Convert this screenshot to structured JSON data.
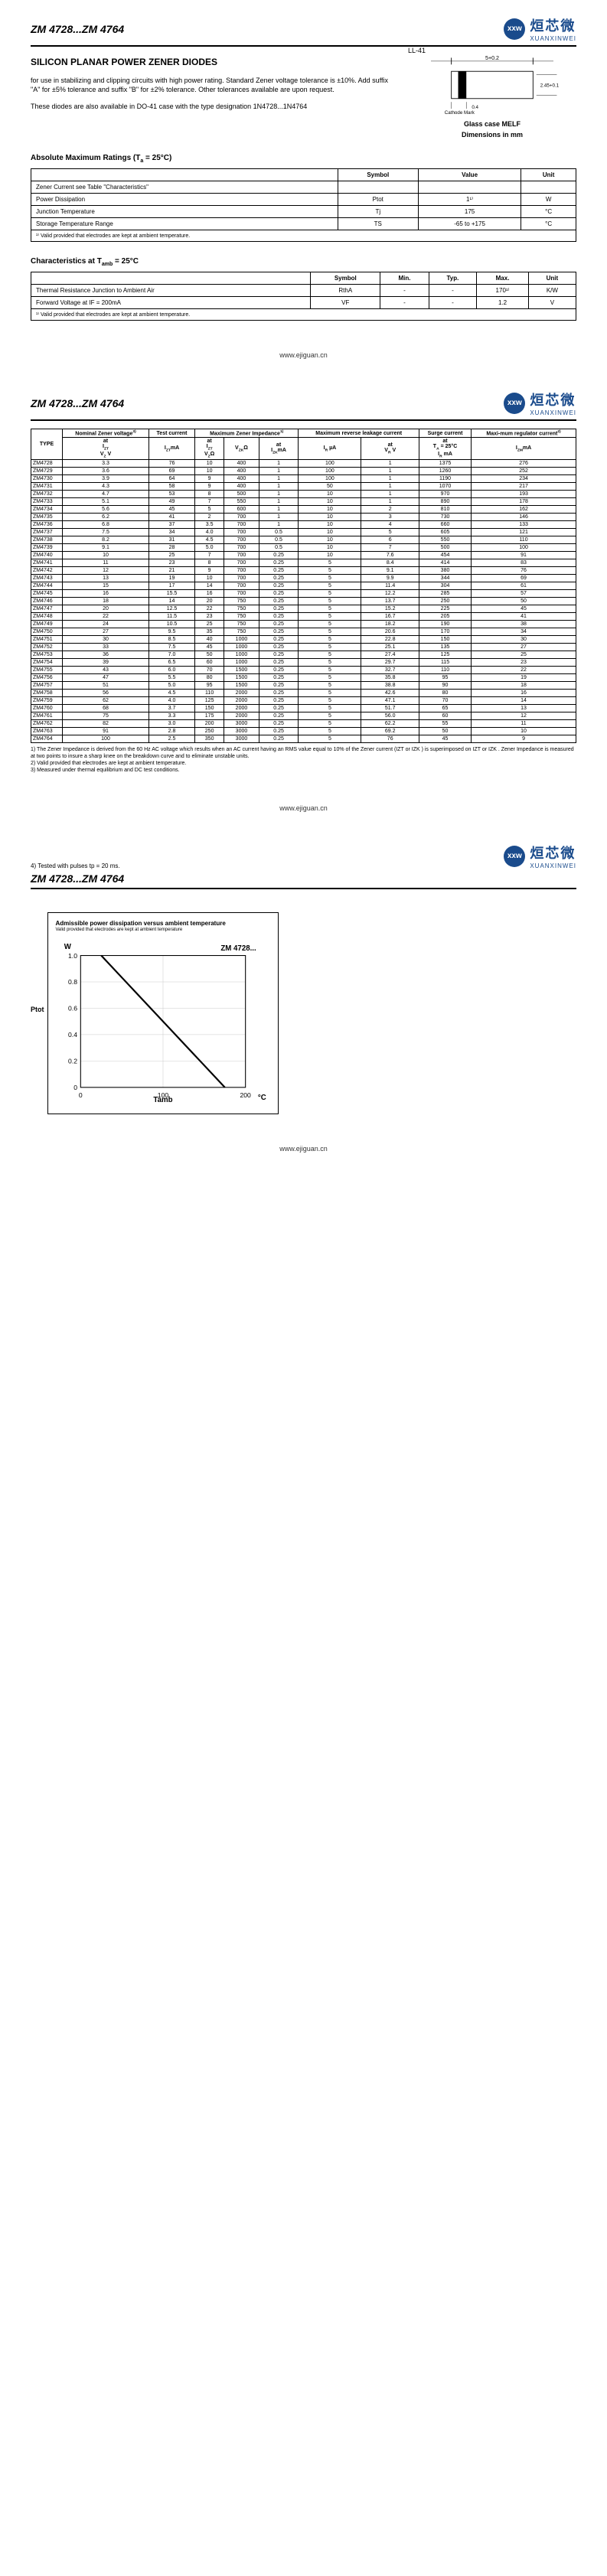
{
  "header": {
    "range": "ZM 4728...ZM 4764",
    "logo_cn": "烜芯微",
    "logo_en": "XUANXINWEI",
    "logo_mark": "xxw"
  },
  "main_title": "SILICON PLANAR POWER ZENER DIODES",
  "intro_p1": "for use in stabilizing and clipping circuits with high power rating. Standard Zener voltage tolerance is ±10%. Add suffix \"A\" for ±5% tolerance and suffix \"B\" for ±2% tolerance. Other tolerances available are upon request.",
  "intro_p2": "These diodes are also available in DO-41 case with the type designation 1N4728...1N4764",
  "diagram": {
    "ll41": "LL-41",
    "cathode": "Cathode Mark",
    "dim1": "5+0.2",
    "dim2": "2.45+0.1",
    "dim3": "0.4",
    "case_label": "Glass case MELF",
    "dim_label": "Dimensions in mm"
  },
  "abs_max": {
    "title": "Absolute Maximum Ratings (Ta = 25°C)",
    "headers": [
      "",
      "Symbol",
      "Value",
      "Unit"
    ],
    "rows": [
      [
        "Zener Current see Table \"Characteristics\"",
        "",
        "",
        ""
      ],
      [
        "Power Dissipation",
        "Ptot",
        "1¹⁾",
        "W"
      ],
      [
        "Junction Temperature",
        "Tj",
        "175",
        "°C"
      ],
      [
        "Storage Temperature Range",
        "TS",
        "-65 to +175",
        "°C"
      ]
    ],
    "footnote": "¹⁾ Valid provided that electrodes are kept at ambient temperature."
  },
  "characteristics": {
    "title": "Characteristics at Tamb = 25°C",
    "headers": [
      "",
      "Symbol",
      "Min.",
      "Typ.",
      "Max.",
      "Unit"
    ],
    "rows": [
      [
        "Thermal Resistance Junction to Ambient Air",
        "RthA",
        "-",
        "-",
        "170¹⁾",
        "K/W"
      ],
      [
        "Forward Voltage at IF = 200mA",
        "VF",
        "-",
        "-",
        "1.2",
        "V"
      ]
    ],
    "footnote": "¹⁾ Valid provided that electrodes are kept at ambient temperature."
  },
  "footer_url": "www.ejiguan.cn",
  "main_table": {
    "top_headers": [
      "TYPE",
      "Nominal Zener voltage³⁾",
      "Test current",
      "Maximum Zener Impedance¹⁾",
      "",
      "Maximum reverse leakage current",
      "",
      "Surge current",
      "Maxi-mum regulator current²⁾"
    ],
    "sub_headers": [
      "",
      "at IZT VZ V",
      "IZTmA",
      "at IZT VZΩ",
      "VZKΩ",
      "at IZKmA",
      "IR µA",
      "at VR V",
      "at TA = 25°C IR mA",
      "IZMmA"
    ],
    "rows": [
      [
        "ZM4728",
        "3.3",
        "76",
        "10",
        "400",
        "1",
        "100",
        "1",
        "1375",
        "276"
      ],
      [
        "ZM4729",
        "3.6",
        "69",
        "10",
        "400",
        "1",
        "100",
        "1",
        "1260",
        "252"
      ],
      [
        "ZM4730",
        "3.9",
        "64",
        "9",
        "400",
        "1",
        "100",
        "1",
        "1190",
        "234"
      ],
      [
        "ZM4731",
        "4.3",
        "58",
        "9",
        "400",
        "1",
        "50",
        "1",
        "1070",
        "217"
      ],
      [
        "ZM4732",
        "4.7",
        "53",
        "8",
        "500",
        "1",
        "10",
        "1",
        "970",
        "193"
      ],
      [
        "ZM4733",
        "5.1",
        "49",
        "7",
        "550",
        "1",
        "10",
        "1",
        "890",
        "178"
      ],
      [
        "ZM4734",
        "5.6",
        "45",
        "5",
        "600",
        "1",
        "10",
        "2",
        "810",
        "162"
      ],
      [
        "ZM4735",
        "6.2",
        "41",
        "2",
        "700",
        "1",
        "10",
        "3",
        "730",
        "146"
      ],
      [
        "ZM4736",
        "6.8",
        "37",
        "3.5",
        "700",
        "1",
        "10",
        "4",
        "660",
        "133"
      ],
      [
        "ZM4737",
        "7.5",
        "34",
        "4.0",
        "700",
        "0.5",
        "10",
        "5",
        "605",
        "121"
      ],
      [
        "ZM4738",
        "8.2",
        "31",
        "4.5",
        "700",
        "0.5",
        "10",
        "6",
        "550",
        "110"
      ],
      [
        "ZM4739",
        "9.1",
        "28",
        "5.0",
        "700",
        "0.5",
        "10",
        "7",
        "500",
        "100"
      ],
      [
        "ZM4740",
        "10",
        "25",
        "7",
        "700",
        "0.25",
        "10",
        "7.6",
        "454",
        "91"
      ],
      [
        "ZM4741",
        "11",
        "23",
        "8",
        "700",
        "0.25",
        "5",
        "8.4",
        "414",
        "83"
      ],
      [
        "ZM4742",
        "12",
        "21",
        "9",
        "700",
        "0.25",
        "5",
        "9.1",
        "380",
        "76"
      ],
      [
        "ZM4743",
        "13",
        "19",
        "10",
        "700",
        "0.25",
        "5",
        "9.9",
        "344",
        "69"
      ],
      [
        "ZM4744",
        "15",
        "17",
        "14",
        "700",
        "0.25",
        "5",
        "11.4",
        "304",
        "61"
      ],
      [
        "ZM4745",
        "16",
        "15.5",
        "16",
        "700",
        "0.25",
        "5",
        "12.2",
        "285",
        "57"
      ],
      [
        "ZM4746",
        "18",
        "14",
        "20",
        "750",
        "0.25",
        "5",
        "13.7",
        "250",
        "50"
      ],
      [
        "ZM4747",
        "20",
        "12.5",
        "22",
        "750",
        "0.25",
        "5",
        "15.2",
        "225",
        "45"
      ],
      [
        "ZM4748",
        "22",
        "11.5",
        "23",
        "750",
        "0.25",
        "5",
        "16.7",
        "205",
        "41"
      ],
      [
        "ZM4749",
        "24",
        "10.5",
        "25",
        "750",
        "0.25",
        "5",
        "18.2",
        "190",
        "38"
      ],
      [
        "ZM4750",
        "27",
        "9.5",
        "35",
        "750",
        "0.25",
        "5",
        "20.6",
        "170",
        "34"
      ],
      [
        "ZM4751",
        "30",
        "8.5",
        "40",
        "1000",
        "0.25",
        "5",
        "22.8",
        "150",
        "30"
      ],
      [
        "ZM4752",
        "33",
        "7.5",
        "45",
        "1000",
        "0.25",
        "5",
        "25.1",
        "135",
        "27"
      ],
      [
        "ZM4753",
        "36",
        "7.0",
        "50",
        "1000",
        "0.25",
        "5",
        "27.4",
        "125",
        "25"
      ],
      [
        "ZM4754",
        "39",
        "6.5",
        "60",
        "1000",
        "0.25",
        "5",
        "29.7",
        "115",
        "23"
      ],
      [
        "ZM4755",
        "43",
        "6.0",
        "70",
        "1500",
        "0.25",
        "5",
        "32.7",
        "110",
        "22"
      ],
      [
        "ZM4756",
        "47",
        "5.5",
        "80",
        "1500",
        "0.25",
        "5",
        "35.8",
        "95",
        "19"
      ],
      [
        "ZM4757",
        "51",
        "5.0",
        "95",
        "1500",
        "0.25",
        "5",
        "38.8",
        "90",
        "18"
      ],
      [
        "ZM4758",
        "56",
        "4.5",
        "110",
        "2000",
        "0.25",
        "5",
        "42.6",
        "80",
        "16"
      ],
      [
        "ZM4759",
        "62",
        "4.0",
        "125",
        "2000",
        "0.25",
        "5",
        "47.1",
        "70",
        "14"
      ],
      [
        "ZM4760",
        "68",
        "3.7",
        "150",
        "2000",
        "0.25",
        "5",
        "51.7",
        "65",
        "13"
      ],
      [
        "ZM4761",
        "75",
        "3.3",
        "175",
        "2000",
        "0.25",
        "5",
        "56.0",
        "60",
        "12"
      ],
      [
        "ZM4762",
        "82",
        "3.0",
        "200",
        "3000",
        "0.25",
        "5",
        "62.2",
        "55",
        "11"
      ],
      [
        "ZM4763",
        "91",
        "2.8",
        "250",
        "3000",
        "0.25",
        "5",
        "69.2",
        "50",
        "10"
      ],
      [
        "ZM4764",
        "100",
        "2.5",
        "350",
        "3000",
        "0.25",
        "5",
        "76",
        "45",
        "9"
      ]
    ]
  },
  "notes_list": [
    "1) The Zener Impedance is derived from the 60 Hz AC voltage which results when an AC current having an RMS value equal to 10% of the Zener current (IZT or IZK ) is superimposed on IZT or IZK . Zener Impedance is measured at two points to insure a sharp knee on the breakdown curve and to eliminate unstable units.",
    "2) Valid provided that electrodes are kept at ambient temperature.",
    "3) Measured under thermal equilibrium and DC test conditions."
  ],
  "note4": "4) Tested with pulses tp = 20 ms.",
  "chart": {
    "title": "Admissible power dissipation versus ambient temperature",
    "subtitle": "Valid provided that electrodes are kept at ambient temperature",
    "ylabel": "Ptot",
    "yunit": "W",
    "series_label": "ZM 4728...",
    "xlabel": "Tamb",
    "xunit": "°C",
    "yticks": [
      "1.0",
      "0.8",
      "0.6",
      "0.4",
      "0.2",
      "0"
    ],
    "xticks": [
      "0",
      "100",
      "200"
    ],
    "line_points": [
      [
        25,
        1.0
      ],
      [
        175,
        0
      ]
    ],
    "bg": "#ffffff",
    "grid": "#cccccc"
  }
}
